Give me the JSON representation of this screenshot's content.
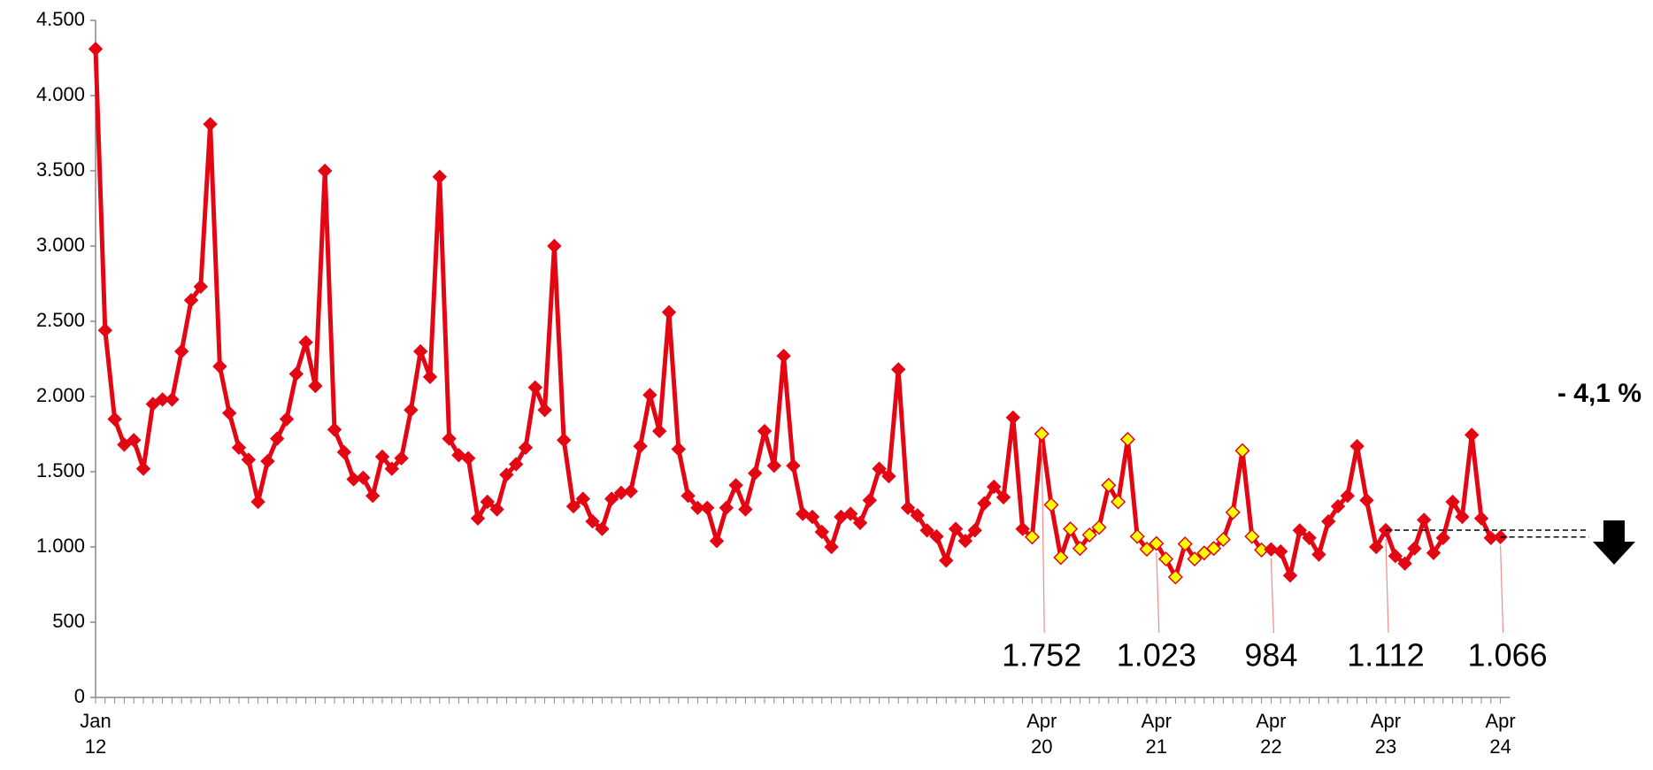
{
  "chart_data": {
    "type": "line",
    "categories": [
      "Jan 12",
      null,
      null,
      null,
      null,
      null,
      null,
      null,
      null,
      null,
      null,
      null,
      null,
      null,
      null,
      null,
      null,
      null,
      null,
      null,
      null,
      null,
      null,
      null,
      null,
      null,
      null,
      null,
      null,
      null,
      null,
      null,
      null,
      null,
      null,
      null,
      null,
      null,
      null,
      null,
      null,
      null,
      null,
      null,
      null,
      null,
      null,
      null,
      null,
      null,
      null,
      null,
      null,
      null,
      null,
      null,
      null,
      null,
      null,
      null,
      null,
      null,
      null,
      null,
      null,
      null,
      null,
      null,
      null,
      null,
      null,
      null,
      null,
      null,
      null,
      null,
      null,
      null,
      null,
      null,
      null,
      null,
      null,
      null,
      null,
      null,
      null,
      null,
      null,
      null,
      null,
      null,
      null,
      null,
      null,
      null,
      null,
      null,
      null,
      "Apr 20",
      null,
      null,
      null,
      null,
      null,
      null,
      null,
      null,
      null,
      null,
      null,
      "Apr 21",
      null,
      null,
      null,
      null,
      null,
      null,
      null,
      null,
      null,
      null,
      null,
      "Apr 22",
      null,
      null,
      null,
      null,
      null,
      null,
      null,
      null,
      null,
      null,
      null,
      "Apr 23",
      null,
      null,
      null,
      null,
      null,
      null,
      null,
      null,
      null,
      null,
      null,
      "Apr 24"
    ],
    "values": [
      4310,
      2440,
      1850,
      1680,
      1710,
      1520,
      1950,
      1980,
      1980,
      2300,
      2640,
      2730,
      3810,
      2200,
      1890,
      1660,
      1580,
      1300,
      1570,
      1720,
      1850,
      2150,
      2360,
      2070,
      3500,
      1780,
      1630,
      1450,
      1460,
      1340,
      1600,
      1520,
      1590,
      1910,
      2300,
      2130,
      3460,
      1720,
      1610,
      1590,
      1190,
      1300,
      1250,
      1480,
      1550,
      1660,
      2060,
      1910,
      3000,
      1710,
      1270,
      1320,
      1170,
      1120,
      1320,
      1360,
      1370,
      1670,
      2010,
      1770,
      2560,
      1650,
      1340,
      1260,
      1260,
      1040,
      1260,
      1410,
      1250,
      1490,
      1770,
      1540,
      2270,
      1540,
      1220,
      1200,
      1100,
      1000,
      1200,
      1220,
      1160,
      1310,
      1520,
      1470,
      2180,
      1260,
      1210,
      1110,
      1070,
      910,
      1120,
      1040,
      1110,
      1290,
      1400,
      1330,
      1860,
      1120,
      1066,
      1752,
      1280,
      930,
      1120,
      990,
      1080,
      1130,
      1410,
      1300,
      1715,
      1070,
      985,
      1023,
      920,
      800,
      1020,
      920,
      960,
      990,
      1050,
      1230,
      1640,
      1070,
      980,
      984,
      970,
      810,
      1110,
      1060,
      950,
      1170,
      1270,
      1340,
      1670,
      1310,
      1000,
      1112,
      940,
      890,
      990,
      1180,
      960,
      1060,
      1300,
      1200,
      1745,
      1190,
      1060,
      1066
    ],
    "value_labels": [
      null,
      null,
      null,
      null,
      null,
      null,
      null,
      null,
      null,
      null,
      null,
      null,
      null,
      null,
      null,
      null,
      null,
      null,
      null,
      null,
      null,
      null,
      null,
      null,
      null,
      null,
      null,
      null,
      null,
      null,
      null,
      null,
      null,
      null,
      null,
      null,
      null,
      null,
      null,
      null,
      null,
      null,
      null,
      null,
      null,
      null,
      null,
      null,
      null,
      null,
      null,
      null,
      null,
      null,
      null,
      null,
      null,
      null,
      null,
      null,
      null,
      null,
      null,
      null,
      null,
      null,
      null,
      null,
      null,
      null,
      null,
      null,
      null,
      null,
      null,
      null,
      null,
      null,
      null,
      null,
      null,
      null,
      null,
      null,
      null,
      null,
      null,
      null,
      null,
      null,
      null,
      null,
      null,
      null,
      null,
      null,
      null,
      null,
      null,
      "1.752",
      null,
      null,
      null,
      null,
      null,
      null,
      null,
      null,
      null,
      null,
      null,
      "1.023",
      null,
      null,
      null,
      null,
      null,
      null,
      null,
      null,
      null,
      null,
      null,
      "984",
      null,
      null,
      null,
      null,
      null,
      null,
      null,
      null,
      null,
      null,
      null,
      "1.112",
      null,
      null,
      null,
      null,
      null,
      null,
      null,
      null,
      null,
      null,
      null,
      "1.066"
    ],
    "color": "#e30613",
    "highlight_color": "#ffff00",
    "highlight_range": [
      98,
      122
    ],
    "ylim": [
      0,
      4500
    ],
    "yticks": [
      0,
      500,
      {
        "value": 1000,
        "label": "1.000"
      },
      {
        "value": 1500,
        "label": "1.500"
      },
      {
        "value": 2000,
        "label": "2.000"
      },
      {
        "value": 2500,
        "label": "2.500"
      },
      {
        "value": 3000,
        "label": "3.000"
      },
      {
        "value": 3500,
        "label": "3.500"
      },
      {
        "value": 4000,
        "label": "4.000"
      },
      {
        "value": 4500,
        "label": "4.500"
      }
    ],
    "grid": false,
    "annotation": "- 4,1 %"
  }
}
